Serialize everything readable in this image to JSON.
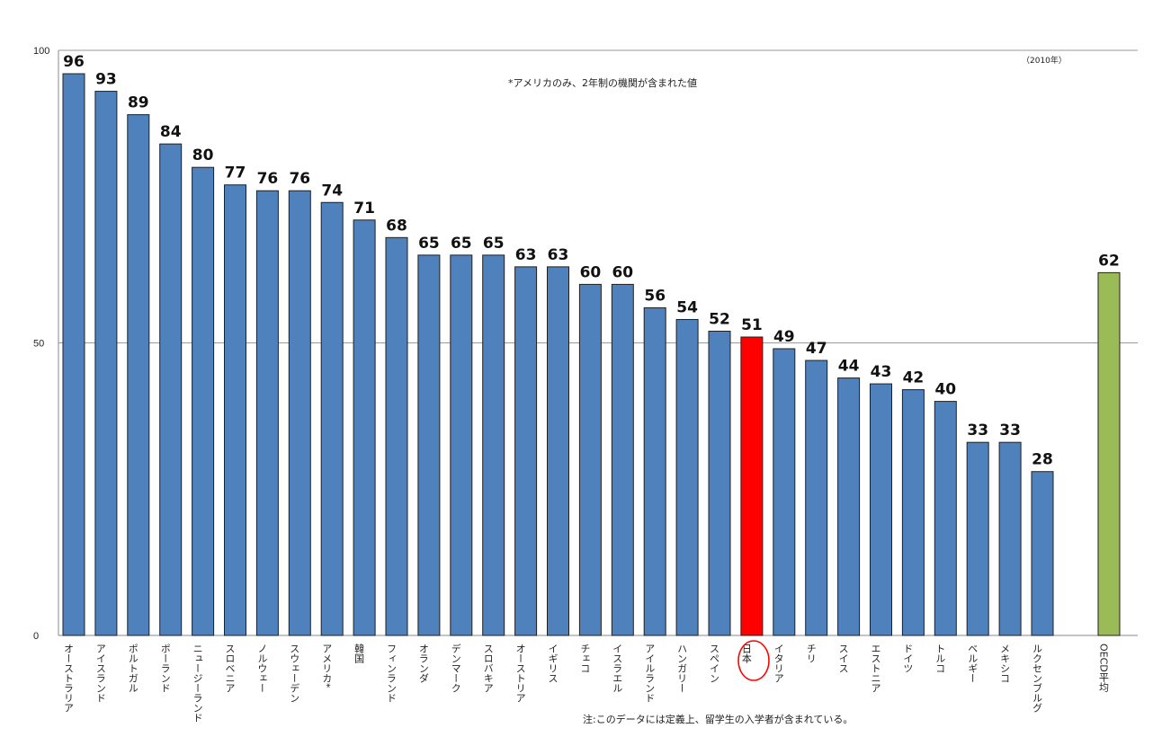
{
  "chart_data": {
    "type": "bar",
    "categories": [
      "オーストラリア",
      "アイスランド",
      "ポルトガル",
      "ポーランド",
      "ニュージーランド",
      "スロベニア",
      "ノルウェー",
      "スウェーデン",
      "アメリカ*",
      "韓国",
      "フィンランド",
      "オランダ",
      "デンマーク",
      "スロバキア",
      "オーストリア",
      "イギリス",
      "チェコ",
      "イスラエル",
      "アイルランド",
      "ハンガリー",
      "スペイン",
      "日本",
      "イタリア",
      "チリ",
      "スイス",
      "エストニア",
      "ドイツ",
      "トルコ",
      "ベルギー",
      "メキシコ",
      "ルクセンブルグ",
      "OECD平均"
    ],
    "values": [
      96,
      93,
      89,
      84,
      80,
      77,
      76,
      76,
      74,
      71,
      68,
      65,
      65,
      65,
      63,
      63,
      60,
      60,
      56,
      54,
      52,
      51,
      49,
      47,
      44,
      43,
      42,
      40,
      33,
      33,
      28,
      62
    ],
    "ylim": [
      0,
      100
    ],
    "yticks": [
      "0",
      "50",
      "100"
    ],
    "grid": true,
    "highlight": {
      "category": "日本",
      "color": "#ff0000",
      "circled": true
    },
    "average": {
      "category": "OECD平均",
      "color": "#9bbb59"
    },
    "bar_color": "#4f81bd",
    "note_top": "*アメリカのみ、2年制の機関が含まれた値",
    "year": "（2010年）",
    "note_bottom": "注:このデータには定義上、留学生の入学者が含まれている。"
  }
}
